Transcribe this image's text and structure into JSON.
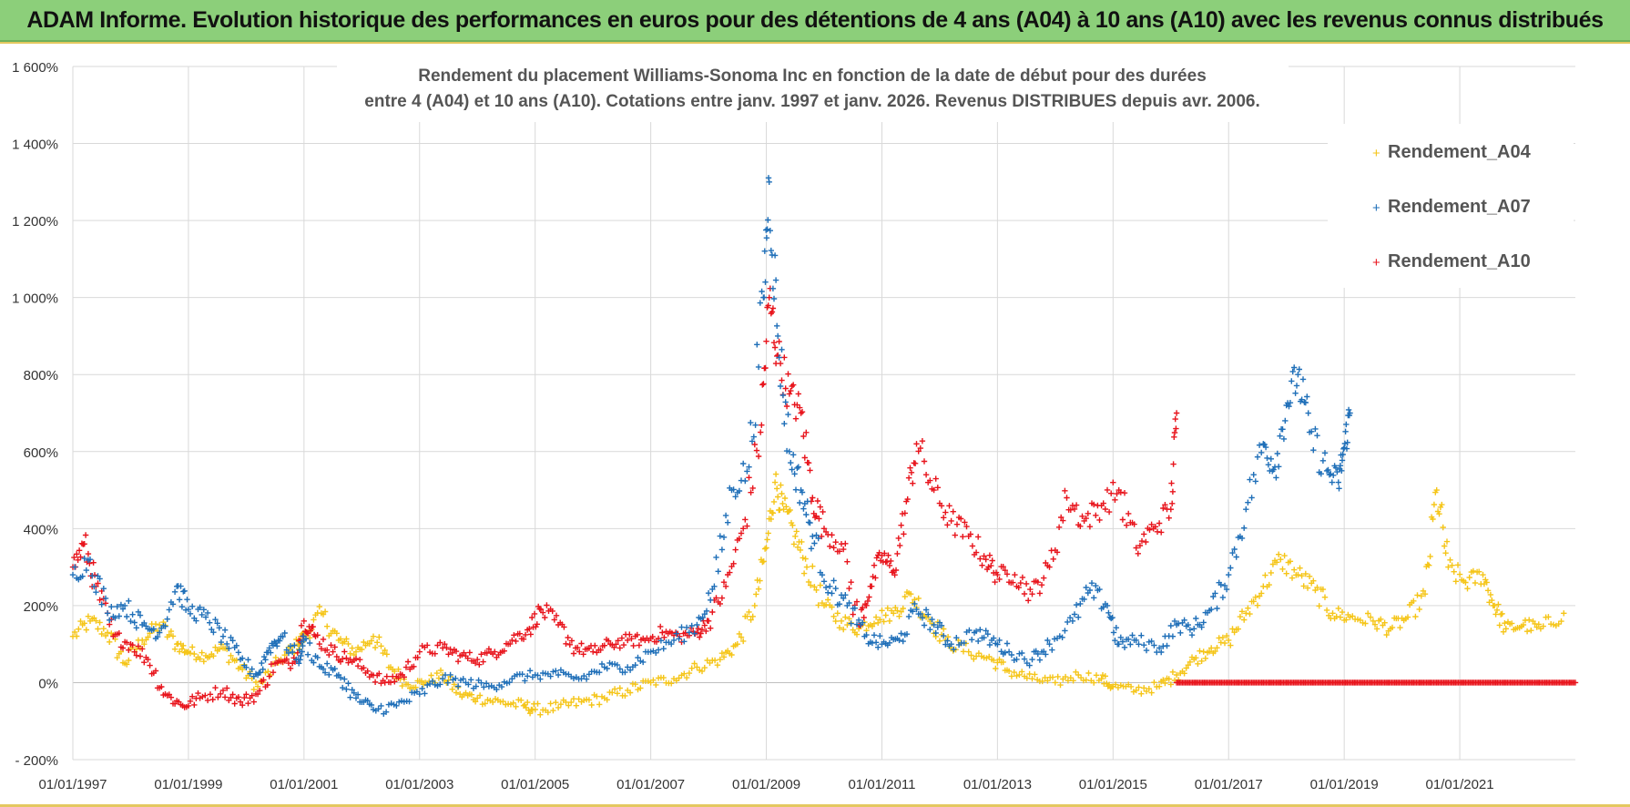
{
  "banner": {
    "title": "ADAM Informe. Evolution historique des performances en euros pour des détentions de 4 ans (A04) à 10 ans (A10) avec les revenus connus distribués"
  },
  "colors": {
    "A04": "#f5c518",
    "A07": "#1f6fb8",
    "A10": "#e8141c",
    "banner": "#8ccf7a",
    "grid": "#d9d9d9"
  },
  "chart_data": {
    "type": "scatter",
    "title_lines": [
      "Rendement du placement Williams-Sonoma Inc en fonction de la date de début pour des durées",
      "entre 4 (A04) et 10 ans (A10).  Cotations entre janv. 1997 et janv. 2026. Revenus DISTRIBUES depuis avr. 2006."
    ],
    "xlabel": "",
    "ylabel": "",
    "x_range": [
      1997.0,
      2023.0
    ],
    "ylim": [
      -200,
      1600
    ],
    "y_ticks": [
      {
        "value": -200,
        "label": "- 200%"
      },
      {
        "value": 0,
        "label": "0%"
      },
      {
        "value": 200,
        "label": "200%"
      },
      {
        "value": 400,
        "label": "400%"
      },
      {
        "value": 600,
        "label": "600%"
      },
      {
        "value": 800,
        "label": "800%"
      },
      {
        "value": 1000,
        "label": "1 000%"
      },
      {
        "value": 1200,
        "label": "1 200%"
      },
      {
        "value": 1400,
        "label": "1 400%"
      },
      {
        "value": 1600,
        "label": "1 600%"
      }
    ],
    "x_ticks": [
      {
        "value": 1997,
        "label": "01/01/1997"
      },
      {
        "value": 1999,
        "label": "01/01/1999"
      },
      {
        "value": 2001,
        "label": "01/01/2001"
      },
      {
        "value": 2003,
        "label": "01/01/2003"
      },
      {
        "value": 2005,
        "label": "01/01/2005"
      },
      {
        "value": 2007,
        "label": "01/01/2007"
      },
      {
        "value": 2009,
        "label": "01/01/2009"
      },
      {
        "value": 2011,
        "label": "01/01/2011"
      },
      {
        "value": 2013,
        "label": "01/01/2013"
      },
      {
        "value": 2015,
        "label": "01/01/2015"
      },
      {
        "value": 2017,
        "label": "01/01/2017"
      },
      {
        "value": 2019,
        "label": "01/01/2019"
      },
      {
        "value": 2021,
        "label": "01/01/2021"
      }
    ],
    "legend_position": "top-right",
    "series": [
      {
        "name": "Rendement_A04",
        "key": "A04",
        "points": [
          [
            1997.0,
            120
          ],
          [
            1997.3,
            160
          ],
          [
            1997.6,
            130
          ],
          [
            1997.9,
            50
          ],
          [
            1998.2,
            110
          ],
          [
            1998.5,
            150
          ],
          [
            1998.8,
            100
          ],
          [
            1999.0,
            80
          ],
          [
            1999.3,
            70
          ],
          [
            1999.6,
            90
          ],
          [
            1999.9,
            40
          ],
          [
            2000.2,
            -10
          ],
          [
            2000.6,
            60
          ],
          [
            2000.9,
            100
          ],
          [
            2001.0,
            120
          ],
          [
            2001.3,
            180
          ],
          [
            2001.6,
            110
          ],
          [
            2001.9,
            80
          ],
          [
            2002.2,
            120
          ],
          [
            2002.5,
            40
          ],
          [
            2002.8,
            -5
          ],
          [
            2003.1,
            0
          ],
          [
            2003.4,
            20
          ],
          [
            2003.7,
            -30
          ],
          [
            2004.0,
            -40
          ],
          [
            2004.4,
            -50
          ],
          [
            2004.8,
            -60
          ],
          [
            2005.0,
            -70
          ],
          [
            2005.4,
            -65
          ],
          [
            2005.8,
            -50
          ],
          [
            2006.2,
            -40
          ],
          [
            2006.6,
            -20
          ],
          [
            2007.0,
            0
          ],
          [
            2007.4,
            10
          ],
          [
            2007.8,
            40
          ],
          [
            2008.2,
            60
          ],
          [
            2008.5,
            100
          ],
          [
            2008.8,
            200
          ],
          [
            2009.0,
            350
          ],
          [
            2009.15,
            520
          ],
          [
            2009.3,
            450
          ],
          [
            2009.5,
            380
          ],
          [
            2009.7,
            300
          ],
          [
            2010.0,
            200
          ],
          [
            2010.3,
            160
          ],
          [
            2010.6,
            140
          ],
          [
            2010.9,
            170
          ],
          [
            2011.2,
            180
          ],
          [
            2011.5,
            230
          ],
          [
            2011.8,
            170
          ],
          [
            2012.1,
            110
          ],
          [
            2012.5,
            80
          ],
          [
            2012.9,
            60
          ],
          [
            2013.2,
            30
          ],
          [
            2013.6,
            10
          ],
          [
            2014.0,
            0
          ],
          [
            2014.4,
            20
          ],
          [
            2014.8,
            10
          ],
          [
            2015.0,
            -10
          ],
          [
            2015.4,
            -20
          ],
          [
            2015.8,
            -10
          ],
          [
            2016.1,
            20
          ],
          [
            2016.4,
            60
          ],
          [
            2016.7,
            90
          ],
          [
            2017.0,
            110
          ],
          [
            2017.3,
            180
          ],
          [
            2017.6,
            250
          ],
          [
            2017.9,
            320
          ],
          [
            2018.2,
            280
          ],
          [
            2018.5,
            240
          ],
          [
            2018.8,
            180
          ],
          [
            2019.1,
            170
          ],
          [
            2019.5,
            160
          ],
          [
            2019.8,
            140
          ],
          [
            2020.1,
            170
          ],
          [
            2020.4,
            230
          ],
          [
            2020.6,
            500
          ],
          [
            2020.8,
            300
          ],
          [
            2021.1,
            260
          ],
          [
            2021.4,
            280
          ],
          [
            2021.6,
            200
          ],
          [
            2021.8,
            140
          ],
          [
            2022.1,
            150
          ],
          [
            2022.4,
            140
          ],
          [
            2022.8,
            180
          ]
        ]
      },
      {
        "name": "Rendement_A07",
        "key": "A07",
        "points": [
          [
            1997.0,
            280
          ],
          [
            1997.3,
            320
          ],
          [
            1997.6,
            180
          ],
          [
            1997.9,
            200
          ],
          [
            1998.2,
            150
          ],
          [
            1998.5,
            130
          ],
          [
            1998.8,
            250
          ],
          [
            1999.0,
            190
          ],
          [
            1999.3,
            170
          ],
          [
            1999.6,
            120
          ],
          [
            1999.9,
            60
          ],
          [
            2000.2,
            20
          ],
          [
            2000.4,
            90
          ],
          [
            2000.6,
            120
          ],
          [
            2000.9,
            60
          ],
          [
            2001.0,
            110
          ],
          [
            2001.3,
            40
          ],
          [
            2001.6,
            20
          ],
          [
            2001.9,
            -40
          ],
          [
            2002.2,
            -70
          ],
          [
            2002.6,
            -60
          ],
          [
            2003.0,
            -30
          ],
          [
            2003.4,
            10
          ],
          [
            2003.8,
            0
          ],
          [
            2004.2,
            -10
          ],
          [
            2004.6,
            10
          ],
          [
            2005.0,
            20
          ],
          [
            2005.4,
            20
          ],
          [
            2005.8,
            10
          ],
          [
            2006.2,
            40
          ],
          [
            2006.6,
            40
          ],
          [
            2007.0,
            80
          ],
          [
            2007.4,
            110
          ],
          [
            2007.8,
            150
          ],
          [
            2008.1,
            250
          ],
          [
            2008.4,
            500
          ],
          [
            2008.7,
            560
          ],
          [
            2008.95,
            1000
          ],
          [
            2009.05,
            1300
          ],
          [
            2009.2,
            900
          ],
          [
            2009.4,
            600
          ],
          [
            2009.6,
            500
          ],
          [
            2009.8,
            380
          ],
          [
            2010.1,
            250
          ],
          [
            2010.4,
            200
          ],
          [
            2010.7,
            120
          ],
          [
            2011.0,
            100
          ],
          [
            2011.3,
            110
          ],
          [
            2011.6,
            190
          ],
          [
            2011.9,
            150
          ],
          [
            2012.2,
            100
          ],
          [
            2012.6,
            130
          ],
          [
            2012.9,
            110
          ],
          [
            2013.2,
            80
          ],
          [
            2013.6,
            60
          ],
          [
            2013.9,
            100
          ],
          [
            2014.3,
            160
          ],
          [
            2014.6,
            240
          ],
          [
            2014.9,
            200
          ],
          [
            2015.1,
            100
          ],
          [
            2015.4,
            110
          ],
          [
            2015.8,
            90
          ],
          [
            2016.1,
            150
          ],
          [
            2016.4,
            140
          ],
          [
            2016.7,
            190
          ],
          [
            2017.0,
            280
          ],
          [
            2017.3,
            450
          ],
          [
            2017.6,
            620
          ],
          [
            2017.8,
            560
          ],
          [
            2018.0,
            720
          ],
          [
            2018.2,
            800
          ],
          [
            2018.4,
            650
          ],
          [
            2018.7,
            550
          ],
          [
            2018.9,
            520
          ],
          [
            2019.0,
            610
          ],
          [
            2019.1,
            700
          ]
        ]
      },
      {
        "name": "Rendement_A10",
        "key": "A10",
        "points": [
          [
            1997.0,
            300
          ],
          [
            1997.2,
            360
          ],
          [
            1997.4,
            250
          ],
          [
            1997.7,
            120
          ],
          [
            1998.0,
            100
          ],
          [
            1998.3,
            60
          ],
          [
            1998.6,
            -30
          ],
          [
            1998.9,
            -60
          ],
          [
            1999.2,
            -40
          ],
          [
            1999.6,
            -20
          ],
          [
            1999.9,
            -50
          ],
          [
            2000.2,
            -30
          ],
          [
            2000.5,
            50
          ],
          [
            2000.8,
            50
          ],
          [
            2001.0,
            160
          ],
          [
            2001.2,
            120
          ],
          [
            2001.5,
            80
          ],
          [
            2001.8,
            60
          ],
          [
            2002.1,
            30
          ],
          [
            2002.4,
            0
          ],
          [
            2002.7,
            20
          ],
          [
            2003.0,
            80
          ],
          [
            2003.4,
            90
          ],
          [
            2003.7,
            70
          ],
          [
            2004.0,
            60
          ],
          [
            2004.3,
            80
          ],
          [
            2004.6,
            110
          ],
          [
            2004.9,
            140
          ],
          [
            2005.1,
            190
          ],
          [
            2005.4,
            150
          ],
          [
            2005.7,
            90
          ],
          [
            2006.0,
            80
          ],
          [
            2006.3,
            100
          ],
          [
            2006.6,
            110
          ],
          [
            2006.9,
            110
          ],
          [
            2007.2,
            130
          ],
          [
            2007.5,
            120
          ],
          [
            2007.8,
            130
          ],
          [
            2008.0,
            160
          ],
          [
            2008.3,
            250
          ],
          [
            2008.6,
            400
          ],
          [
            2008.9,
            650
          ],
          [
            2009.05,
            1000
          ],
          [
            2009.2,
            850
          ],
          [
            2009.4,
            750
          ],
          [
            2009.6,
            700
          ],
          [
            2009.8,
            480
          ],
          [
            2010.0,
            400
          ],
          [
            2010.3,
            360
          ],
          [
            2010.6,
            150
          ],
          [
            2010.8,
            250
          ],
          [
            2011.0,
            330
          ],
          [
            2011.2,
            290
          ],
          [
            2011.4,
            440
          ],
          [
            2011.6,
            620
          ],
          [
            2011.9,
            500
          ],
          [
            2012.2,
            420
          ],
          [
            2012.5,
            380
          ],
          [
            2012.8,
            320
          ],
          [
            2013.0,
            280
          ],
          [
            2013.3,
            280
          ],
          [
            2013.6,
            230
          ],
          [
            2013.9,
            300
          ],
          [
            2014.2,
            480
          ],
          [
            2014.5,
            420
          ],
          [
            2014.8,
            460
          ],
          [
            2015.1,
            500
          ],
          [
            2015.4,
            350
          ],
          [
            2015.7,
            400
          ],
          [
            2016.0,
            450
          ],
          [
            2016.1,
            700
          ]
        ]
      }
    ],
    "flat_segment": {
      "series": "A10",
      "x_start": 2016.1,
      "x_end": 2023.0,
      "value": 0
    }
  }
}
